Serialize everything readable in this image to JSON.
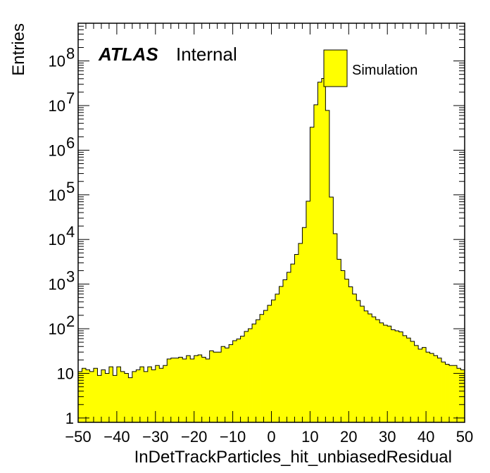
{
  "chart_data": {
    "type": "bar",
    "title": "",
    "xlabel": "InDetTrackParticles_hit_unbiasedResidual",
    "ylabel": "Entries",
    "xlim": [
      -50,
      50
    ],
    "ylim": [
      0.8,
      700000000
    ],
    "y_scale": "log",
    "x_ticks": [
      -50,
      -40,
      -30,
      -20,
      -10,
      0,
      10,
      20,
      30,
      40,
      50
    ],
    "x_tick_labels": [
      "−50",
      "−40",
      "−30",
      "−20",
      "−10",
      "0",
      "10",
      "20",
      "30",
      "40",
      "50"
    ],
    "y_ticks": [
      {
        "value": 1,
        "base": "1",
        "exp": ""
      },
      {
        "value": 10,
        "base": "10",
        "exp": ""
      },
      {
        "value": 100,
        "base": "10",
        "exp": "2"
      },
      {
        "value": 1000,
        "base": "10",
        "exp": "3"
      },
      {
        "value": 10000,
        "base": "10",
        "exp": "4"
      },
      {
        "value": 100000,
        "base": "10",
        "exp": "5"
      },
      {
        "value": 1000000,
        "base": "10",
        "exp": "6"
      },
      {
        "value": 10000000,
        "base": "10",
        "exp": "7"
      },
      {
        "value": 100000000,
        "base": "10",
        "exp": "8"
      }
    ],
    "annotations": {
      "experiment": "ATLAS",
      "status": "Internal"
    },
    "legend": {
      "position": "top-right",
      "entries": [
        {
          "label": "Simulation",
          "color": "#ffff00"
        }
      ]
    },
    "fill_color": "#ffff00",
    "line_color": "#000000",
    "bin_width": 1,
    "bin_low_edges": [
      -50,
      -49,
      -48,
      -47,
      -46,
      -45,
      -44,
      -43,
      -42,
      -41,
      -40,
      -39,
      -38,
      -37,
      -36,
      -35,
      -34,
      -33,
      -32,
      -31,
      -30,
      -29,
      -28,
      -27,
      -26,
      -25,
      -24,
      -23,
      -22,
      -21,
      -20,
      -19,
      -18,
      -17,
      -16,
      -15,
      -14,
      -13,
      -12,
      -11,
      -10,
      -9,
      -8,
      -7,
      -6,
      -5,
      -4,
      -3,
      -2,
      -1,
      0,
      1,
      2,
      3,
      4,
      5,
      6,
      7,
      8,
      9,
      10,
      11,
      12,
      13,
      14,
      15,
      16,
      17,
      18,
      19,
      20,
      21,
      22,
      23,
      24,
      25,
      26,
      27,
      28,
      29,
      30,
      31,
      32,
      33,
      34,
      35,
      36,
      37,
      38,
      39,
      40,
      41,
      42,
      43,
      44,
      45,
      46,
      47,
      48,
      49
    ],
    "values": [
      11,
      13,
      12,
      11,
      13,
      9,
      12,
      10,
      14,
      9,
      14,
      11,
      10,
      8,
      11,
      12,
      14,
      11,
      14,
      12,
      15,
      13,
      15,
      21,
      22,
      22,
      23,
      21,
      25,
      21,
      25,
      26,
      23,
      21,
      32,
      30,
      30,
      40,
      37,
      44,
      54,
      59,
      68,
      87,
      100,
      128,
      159,
      209,
      258,
      335,
      442,
      597,
      884,
      1252,
      1834,
      2817,
      4618,
      8149,
      18540,
      72045,
      3280000,
      10400000,
      33500000,
      40400000,
      7800000,
      89000,
      13500,
      3600,
      2000,
      1290,
      870,
      600,
      430,
      320,
      250,
      215,
      185,
      160,
      135,
      120,
      115,
      95,
      90,
      85,
      70,
      62,
      52,
      42,
      35,
      38,
      30,
      28,
      25,
      22,
      18,
      16,
      15,
      15,
      13,
      12
    ]
  }
}
